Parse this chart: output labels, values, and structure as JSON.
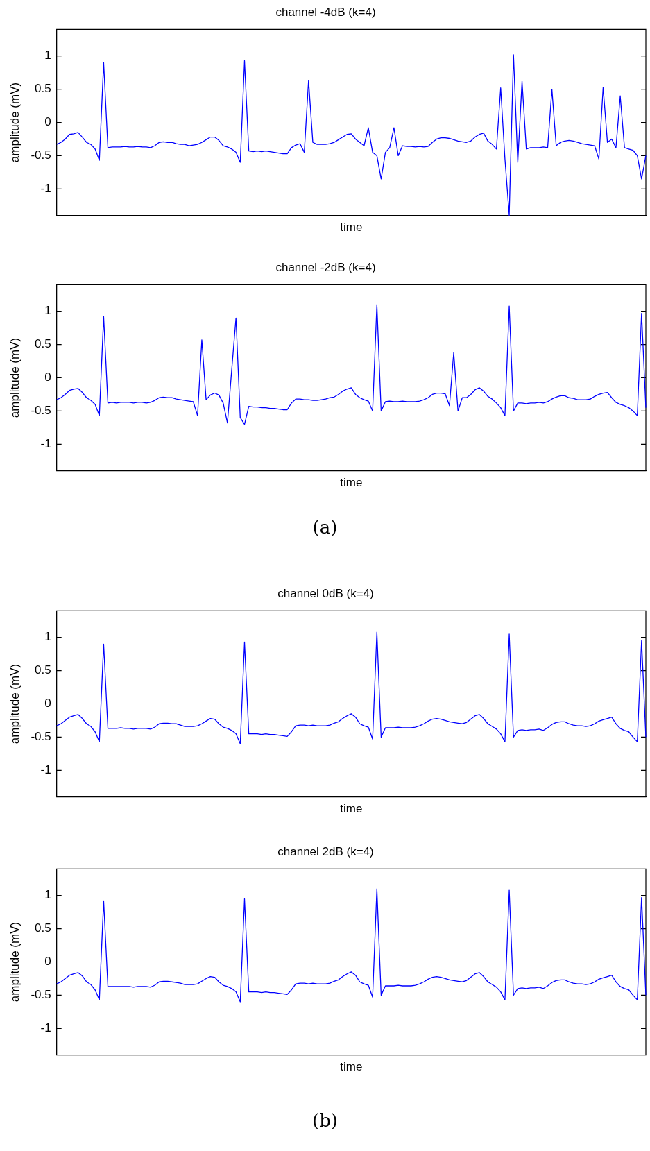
{
  "chart_data": [
    {
      "type": "line",
      "title": "channel -4dB (k=4)",
      "xlabel": "time",
      "ylabel": "amplitude (mV)",
      "ylim": [
        -1.4,
        1.4
      ],
      "yticks": [
        -1,
        -0.5,
        0,
        0.5,
        1
      ],
      "tick_labels": "y",
      "grid": false,
      "legend": false,
      "categories": [
        null,
        null,
        null,
        null,
        null,
        null,
        null,
        null,
        null,
        null,
        null,
        null,
        null,
        null,
        null,
        null,
        null,
        null,
        null,
        null,
        null,
        null,
        null,
        null,
        null,
        null,
        null,
        null,
        null,
        null,
        null,
        null,
        null,
        null,
        null,
        null,
        null,
        null,
        null,
        null,
        null,
        null,
        null,
        null,
        null,
        null,
        null,
        null,
        null,
        null,
        null,
        null,
        null,
        null,
        null,
        null,
        null,
        null,
        null,
        null,
        null,
        null,
        null,
        null,
        null,
        null,
        null,
        null,
        null,
        null,
        null,
        null,
        null,
        null,
        null,
        null,
        null,
        null,
        null,
        null,
        null,
        null,
        null,
        null,
        null,
        null,
        null,
        null,
        null,
        null,
        null,
        null,
        null,
        null,
        null,
        null,
        null,
        null,
        null,
        null,
        null,
        null,
        null,
        null,
        null,
        null,
        null,
        null,
        null,
        null,
        null,
        null,
        null,
        null,
        null,
        null,
        null,
        null,
        null,
        null,
        null,
        null,
        null,
        null,
        null,
        null,
        null,
        null,
        null,
        null,
        null,
        null,
        null,
        null,
        null,
        null,
        null,
        null,
        null
      ],
      "series": [
        {
          "color": "#0000ff",
          "values": [
            -0.33,
            -0.3,
            -0.25,
            -0.18,
            -0.17,
            -0.15,
            -0.22,
            -0.3,
            -0.33,
            -0.4,
            -0.57,
            0.9,
            -0.38,
            -0.37,
            -0.37,
            -0.37,
            -0.36,
            -0.37,
            -0.37,
            -0.36,
            -0.37,
            -0.37,
            -0.38,
            -0.35,
            -0.3,
            -0.29,
            -0.3,
            -0.3,
            -0.32,
            -0.33,
            -0.33,
            -0.35,
            -0.34,
            -0.33,
            -0.3,
            -0.26,
            -0.22,
            -0.22,
            -0.27,
            -0.35,
            -0.37,
            -0.4,
            -0.45,
            -0.6,
            0.93,
            -0.43,
            -0.44,
            -0.43,
            -0.44,
            -0.43,
            -0.44,
            -0.45,
            -0.46,
            -0.47,
            -0.47,
            -0.38,
            -0.34,
            -0.32,
            -0.45,
            0.63,
            -0.3,
            -0.33,
            -0.33,
            -0.33,
            -0.32,
            -0.3,
            -0.26,
            -0.22,
            -0.18,
            -0.17,
            -0.25,
            -0.3,
            -0.35,
            -0.08,
            -0.45,
            -0.5,
            -0.85,
            -0.45,
            -0.38,
            -0.08,
            -0.5,
            -0.35,
            -0.36,
            -0.36,
            -0.37,
            -0.36,
            -0.37,
            -0.36,
            -0.3,
            -0.25,
            -0.23,
            -0.23,
            -0.24,
            -0.26,
            -0.28,
            -0.29,
            -0.3,
            -0.28,
            -0.22,
            -0.18,
            -0.16,
            -0.28,
            -0.33,
            -0.4,
            0.52,
            -0.55,
            -1.4,
            1.02,
            -0.6,
            0.62,
            -0.4,
            -0.38,
            -0.38,
            -0.38,
            -0.37,
            -0.38,
            0.5,
            -0.35,
            -0.3,
            -0.28,
            -0.27,
            -0.28,
            -0.3,
            -0.32,
            -0.33,
            -0.34,
            -0.35,
            -0.55,
            0.53,
            -0.3,
            -0.25,
            -0.38,
            0.4,
            -0.38,
            -0.4,
            -0.42,
            -0.5,
            -0.85,
            -0.5
          ]
        }
      ]
    },
    {
      "type": "line",
      "title": "channel -2dB (k=4)",
      "xlabel": "time",
      "ylabel": "amplitude (mV)",
      "ylim": [
        -1.4,
        1.4
      ],
      "yticks": [
        -1,
        -0.5,
        0,
        0.5,
        1
      ],
      "tick_labels": "y",
      "grid": false,
      "legend": false,
      "annotations": [
        "(a)"
      ],
      "categories": [
        null,
        null,
        null,
        null,
        null,
        null,
        null,
        null,
        null,
        null,
        null,
        null,
        null,
        null,
        null,
        null,
        null,
        null,
        null,
        null,
        null,
        null,
        null,
        null,
        null,
        null,
        null,
        null,
        null,
        null,
        null,
        null,
        null,
        null,
        null,
        null,
        null,
        null,
        null,
        null,
        null,
        null,
        null,
        null,
        null,
        null,
        null,
        null,
        null,
        null,
        null,
        null,
        null,
        null,
        null,
        null,
        null,
        null,
        null,
        null,
        null,
        null,
        null,
        null,
        null,
        null,
        null,
        null,
        null,
        null,
        null,
        null,
        null,
        null,
        null,
        null,
        null,
        null,
        null,
        null,
        null,
        null,
        null,
        null,
        null,
        null,
        null,
        null,
        null,
        null,
        null,
        null,
        null,
        null,
        null,
        null,
        null,
        null,
        null,
        null,
        null,
        null,
        null,
        null,
        null,
        null,
        null,
        null,
        null,
        null,
        null,
        null,
        null,
        null,
        null,
        null,
        null,
        null,
        null,
        null,
        null,
        null,
        null,
        null,
        null,
        null,
        null,
        null,
        null,
        null,
        null,
        null,
        null,
        null,
        null,
        null,
        null,
        null,
        null
      ],
      "series": [
        {
          "color": "#0000ff",
          "values": [
            -0.33,
            -0.3,
            -0.25,
            -0.19,
            -0.17,
            -0.16,
            -0.22,
            -0.3,
            -0.34,
            -0.4,
            -0.57,
            0.92,
            -0.38,
            -0.37,
            -0.38,
            -0.37,
            -0.37,
            -0.37,
            -0.38,
            -0.37,
            -0.37,
            -0.38,
            -0.37,
            -0.34,
            -0.3,
            -0.29,
            -0.3,
            -0.3,
            -0.32,
            -0.33,
            -0.34,
            -0.35,
            -0.36,
            -0.57,
            0.57,
            -0.33,
            -0.26,
            -0.23,
            -0.26,
            -0.38,
            -0.68,
            0.12,
            0.9,
            -0.6,
            -0.7,
            -0.43,
            -0.44,
            -0.44,
            -0.45,
            -0.45,
            -0.46,
            -0.46,
            -0.47,
            -0.48,
            -0.48,
            -0.38,
            -0.32,
            -0.32,
            -0.33,
            -0.33,
            -0.34,
            -0.34,
            -0.33,
            -0.32,
            -0.3,
            -0.29,
            -0.25,
            -0.2,
            -0.17,
            -0.15,
            -0.25,
            -0.3,
            -0.33,
            -0.35,
            -0.5,
            1.1,
            -0.5,
            -0.36,
            -0.35,
            -0.36,
            -0.36,
            -0.35,
            -0.36,
            -0.36,
            -0.36,
            -0.35,
            -0.33,
            -0.3,
            -0.25,
            -0.23,
            -0.23,
            -0.24,
            -0.42,
            0.38,
            -0.5,
            -0.3,
            -0.3,
            -0.25,
            -0.18,
            -0.15,
            -0.2,
            -0.28,
            -0.32,
            -0.38,
            -0.45,
            -0.57,
            1.08,
            -0.5,
            -0.38,
            -0.38,
            -0.39,
            -0.38,
            -0.38,
            -0.37,
            -0.38,
            -0.36,
            -0.32,
            -0.29,
            -0.27,
            -0.27,
            -0.3,
            -0.31,
            -0.33,
            -0.33,
            -0.33,
            -0.32,
            -0.28,
            -0.25,
            -0.23,
            -0.22,
            -0.3,
            -0.37,
            -0.4,
            -0.42,
            -0.45,
            -0.5,
            -0.57,
            0.97,
            -0.45
          ]
        }
      ]
    },
    {
      "type": "line",
      "title": "channel 0dB (k=4)",
      "xlabel": "time",
      "ylabel": "amplitude (mV)",
      "ylim": [
        -1.4,
        1.4
      ],
      "yticks": [
        -1,
        -0.5,
        0,
        0.5,
        1
      ],
      "tick_labels": "y",
      "grid": false,
      "legend": false,
      "categories": [
        null,
        null,
        null,
        null,
        null,
        null,
        null,
        null,
        null,
        null,
        null,
        null,
        null,
        null,
        null,
        null,
        null,
        null,
        null,
        null,
        null,
        null,
        null,
        null,
        null,
        null,
        null,
        null,
        null,
        null,
        null,
        null,
        null,
        null,
        null,
        null,
        null,
        null,
        null,
        null,
        null,
        null,
        null,
        null,
        null,
        null,
        null,
        null,
        null,
        null,
        null,
        null,
        null,
        null,
        null,
        null,
        null,
        null,
        null,
        null,
        null,
        null,
        null,
        null,
        null,
        null,
        null,
        null,
        null,
        null,
        null,
        null,
        null,
        null,
        null,
        null,
        null,
        null,
        null,
        null,
        null,
        null,
        null,
        null,
        null,
        null,
        null,
        null,
        null,
        null,
        null,
        null,
        null,
        null,
        null,
        null,
        null,
        null,
        null,
        null,
        null,
        null,
        null,
        null,
        null,
        null,
        null,
        null,
        null,
        null,
        null,
        null,
        null,
        null,
        null,
        null,
        null,
        null,
        null,
        null,
        null,
        null,
        null,
        null,
        null,
        null,
        null,
        null,
        null,
        null,
        null,
        null,
        null,
        null,
        null,
        null,
        null,
        null,
        null
      ],
      "series": [
        {
          "color": "#0000ff",
          "values": [
            -0.33,
            -0.3,
            -0.25,
            -0.2,
            -0.18,
            -0.16,
            -0.22,
            -0.3,
            -0.34,
            -0.42,
            -0.57,
            0.9,
            -0.37,
            -0.37,
            -0.37,
            -0.36,
            -0.37,
            -0.37,
            -0.38,
            -0.37,
            -0.37,
            -0.37,
            -0.38,
            -0.35,
            -0.3,
            -0.29,
            -0.29,
            -0.3,
            -0.3,
            -0.32,
            -0.34,
            -0.34,
            -0.34,
            -0.33,
            -0.3,
            -0.26,
            -0.22,
            -0.23,
            -0.3,
            -0.35,
            -0.37,
            -0.4,
            -0.45,
            -0.6,
            0.93,
            -0.45,
            -0.45,
            -0.45,
            -0.46,
            -0.45,
            -0.46,
            -0.46,
            -0.47,
            -0.48,
            -0.49,
            -0.42,
            -0.33,
            -0.32,
            -0.32,
            -0.33,
            -0.32,
            -0.33,
            -0.33,
            -0.33,
            -0.32,
            -0.29,
            -0.27,
            -0.22,
            -0.18,
            -0.15,
            -0.2,
            -0.3,
            -0.33,
            -0.35,
            -0.53,
            1.08,
            -0.5,
            -0.36,
            -0.36,
            -0.36,
            -0.35,
            -0.36,
            -0.36,
            -0.36,
            -0.35,
            -0.33,
            -0.3,
            -0.26,
            -0.23,
            -0.22,
            -0.23,
            -0.25,
            -0.27,
            -0.28,
            -0.29,
            -0.3,
            -0.28,
            -0.23,
            -0.18,
            -0.16,
            -0.22,
            -0.3,
            -0.34,
            -0.38,
            -0.45,
            -0.57,
            1.05,
            -0.5,
            -0.4,
            -0.39,
            -0.4,
            -0.39,
            -0.39,
            -0.38,
            -0.4,
            -0.36,
            -0.31,
            -0.28,
            -0.27,
            -0.27,
            -0.3,
            -0.32,
            -0.33,
            -0.33,
            -0.34,
            -0.33,
            -0.3,
            -0.26,
            -0.24,
            -0.22,
            -0.2,
            -0.3,
            -0.37,
            -0.4,
            -0.42,
            -0.5,
            -0.57,
            0.95,
            -0.5
          ]
        }
      ]
    },
    {
      "type": "line",
      "title": "channel 2dB (k=4)",
      "xlabel": "time",
      "ylabel": "amplitude (mV)",
      "ylim": [
        -1.4,
        1.4
      ],
      "yticks": [
        -1,
        -0.5,
        0,
        0.5,
        1
      ],
      "tick_labels": "y",
      "grid": false,
      "legend": false,
      "annotations": [
        "(b)"
      ],
      "categories": [
        null,
        null,
        null,
        null,
        null,
        null,
        null,
        null,
        null,
        null,
        null,
        null,
        null,
        null,
        null,
        null,
        null,
        null,
        null,
        null,
        null,
        null,
        null,
        null,
        null,
        null,
        null,
        null,
        null,
        null,
        null,
        null,
        null,
        null,
        null,
        null,
        null,
        null,
        null,
        null,
        null,
        null,
        null,
        null,
        null,
        null,
        null,
        null,
        null,
        null,
        null,
        null,
        null,
        null,
        null,
        null,
        null,
        null,
        null,
        null,
        null,
        null,
        null,
        null,
        null,
        null,
        null,
        null,
        null,
        null,
        null,
        null,
        null,
        null,
        null,
        null,
        null,
        null,
        null,
        null,
        null,
        null,
        null,
        null,
        null,
        null,
        null,
        null,
        null,
        null,
        null,
        null,
        null,
        null,
        null,
        null,
        null,
        null,
        null,
        null,
        null,
        null,
        null,
        null,
        null,
        null,
        null,
        null,
        null,
        null,
        null,
        null,
        null,
        null,
        null,
        null,
        null,
        null,
        null,
        null,
        null,
        null,
        null,
        null,
        null,
        null,
        null,
        null,
        null,
        null,
        null,
        null,
        null,
        null,
        null,
        null,
        null,
        null,
        null
      ],
      "series": [
        {
          "color": "#0000ff",
          "values": [
            -0.33,
            -0.3,
            -0.25,
            -0.2,
            -0.18,
            -0.16,
            -0.21,
            -0.3,
            -0.34,
            -0.42,
            -0.57,
            0.92,
            -0.37,
            -0.37,
            -0.37,
            -0.37,
            -0.37,
            -0.37,
            -0.38,
            -0.37,
            -0.37,
            -0.37,
            -0.38,
            -0.35,
            -0.3,
            -0.29,
            -0.29,
            -0.3,
            -0.31,
            -0.32,
            -0.34,
            -0.34,
            -0.34,
            -0.33,
            -0.29,
            -0.25,
            -0.22,
            -0.23,
            -0.3,
            -0.35,
            -0.37,
            -0.4,
            -0.45,
            -0.6,
            0.95,
            -0.45,
            -0.45,
            -0.45,
            -0.46,
            -0.45,
            -0.46,
            -0.46,
            -0.47,
            -0.48,
            -0.49,
            -0.42,
            -0.33,
            -0.32,
            -0.32,
            -0.33,
            -0.32,
            -0.33,
            -0.33,
            -0.33,
            -0.32,
            -0.29,
            -0.27,
            -0.22,
            -0.18,
            -0.15,
            -0.2,
            -0.3,
            -0.33,
            -0.35,
            -0.53,
            1.1,
            -0.5,
            -0.36,
            -0.36,
            -0.36,
            -0.35,
            -0.36,
            -0.36,
            -0.36,
            -0.35,
            -0.33,
            -0.3,
            -0.26,
            -0.23,
            -0.22,
            -0.23,
            -0.25,
            -0.27,
            -0.28,
            -0.29,
            -0.3,
            -0.28,
            -0.23,
            -0.18,
            -0.16,
            -0.22,
            -0.3,
            -0.34,
            -0.38,
            -0.45,
            -0.57,
            1.08,
            -0.5,
            -0.4,
            -0.39,
            -0.4,
            -0.39,
            -0.39,
            -0.38,
            -0.4,
            -0.36,
            -0.31,
            -0.28,
            -0.27,
            -0.27,
            -0.3,
            -0.32,
            -0.33,
            -0.33,
            -0.34,
            -0.33,
            -0.3,
            -0.26,
            -0.24,
            -0.22,
            -0.2,
            -0.3,
            -0.37,
            -0.4,
            -0.42,
            -0.5,
            -0.57,
            0.97,
            -0.5
          ]
        }
      ]
    }
  ]
}
